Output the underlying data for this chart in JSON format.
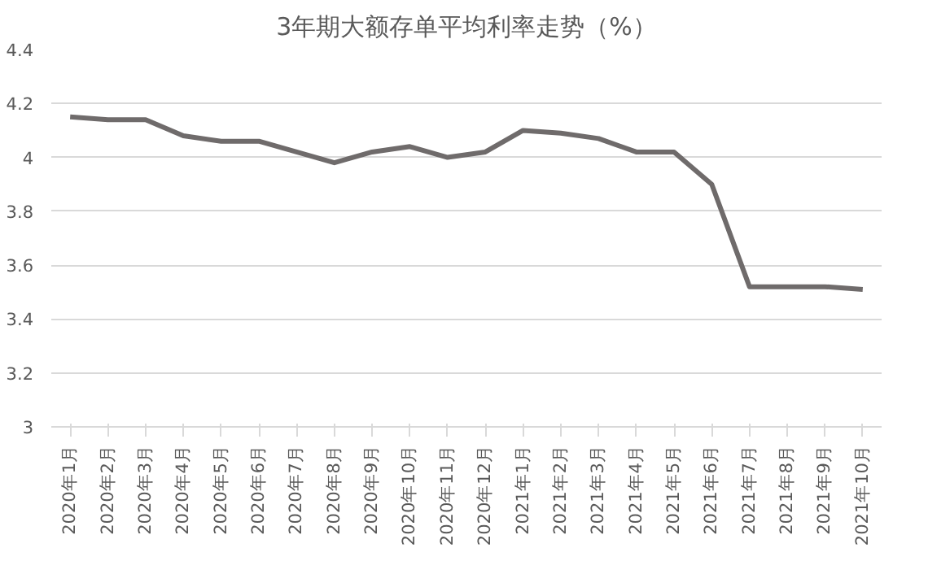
{
  "chart_data": {
    "type": "line",
    "title": "3年期大额存单平均利率走势（%）",
    "categories": [
      "2020年1月",
      "2020年2月",
      "2020年3月",
      "2020年4月",
      "2020年5月",
      "2020年6月",
      "2020年7月",
      "2020年8月",
      "2020年9月",
      "2020年10月",
      "2020年11月",
      "2020年12月",
      "2021年1月",
      "2021年2月",
      "2021年3月",
      "2021年4月",
      "2021年5月",
      "2021年6月",
      "2021年7月",
      "2021年8月",
      "2021年9月",
      "2021年10月"
    ],
    "series": [
      {
        "color": "#6f6b6b",
        "values": [
          4.15,
          4.14,
          4.14,
          4.08,
          4.06,
          4.06,
          4.02,
          3.98,
          4.02,
          4.04,
          4.0,
          4.02,
          4.1,
          4.09,
          4.07,
          4.02,
          4.02,
          3.9,
          3.52,
          3.52,
          3.52,
          3.51
        ]
      }
    ],
    "ylim": [
      3,
      4.4
    ],
    "yticks": [
      3,
      {
        "value": 3.2,
        "label": "3.2"
      },
      {
        "value": 3.4,
        "label": "3.4"
      },
      {
        "value": 3.6,
        "label": "3.6"
      },
      {
        "value": 3.8,
        "label": "3.8"
      },
      4,
      {
        "value": 4.2,
        "label": "4.2"
      },
      {
        "value": 4.4,
        "label": "4.4"
      }
    ],
    "grid": "y",
    "marker": "none",
    "line_style": "solid"
  }
}
